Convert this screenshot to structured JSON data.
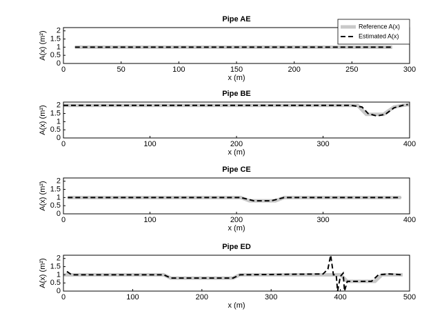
{
  "chart_data": [
    {
      "type": "line",
      "title": "Pipe AE",
      "xlabel": "x (m)",
      "ylabel": "A(x) (m²)",
      "xlim": [
        0,
        300
      ],
      "xticks": [
        0,
        50,
        100,
        150,
        200,
        250,
        300
      ],
      "ylim": [
        0,
        2.2
      ],
      "yticks": [
        0,
        0.5,
        1,
        1.5,
        2
      ],
      "legend": "upper right",
      "series": [
        {
          "name": "Reference A(x)",
          "color": "#c8c8c8",
          "style": "solid",
          "x": [
            10,
            285
          ],
          "values": [
            1,
            1
          ]
        },
        {
          "name": "Estimated A(x)",
          "color": "#000000",
          "style": "dashed",
          "x": [
            10,
            285
          ],
          "values": [
            1,
            1
          ]
        }
      ]
    },
    {
      "type": "line",
      "title": "Pipe BE",
      "xlabel": "x (m)",
      "ylabel": "A(x) (m²)",
      "xlim": [
        0,
        400
      ],
      "xticks": [
        0,
        100,
        200,
        300,
        400
      ],
      "ylim": [
        0,
        2.2
      ],
      "yticks": [
        0,
        0.5,
        1,
        1.5,
        2
      ],
      "series": [
        {
          "color": "#c8c8c8",
          "style": "solid",
          "x": [
            0,
            340,
            350,
            370,
            382,
            392,
            400
          ],
          "values": [
            2,
            2,
            1.45,
            1.45,
            1.9,
            2,
            2.05
          ]
        },
        {
          "color": "#000000",
          "style": "dashed",
          "x": [
            0,
            332,
            345,
            352,
            362,
            372,
            382,
            392,
            398
          ],
          "values": [
            2,
            2,
            1.9,
            1.5,
            1.35,
            1.45,
            1.85,
            2,
            2.05
          ]
        }
      ]
    },
    {
      "type": "line",
      "title": "Pipe CE",
      "xlabel": "x (m)",
      "ylabel": "A(x) (m²)",
      "xlim": [
        0,
        400
      ],
      "xticks": [
        0,
        100,
        200,
        300,
        400
      ],
      "ylim": [
        0,
        2.2
      ],
      "yticks": [
        0,
        0.5,
        1,
        1.5,
        2
      ],
      "series": [
        {
          "color": "#c8c8c8",
          "style": "solid",
          "x": [
            5,
            205,
            215,
            245,
            255,
            390
          ],
          "values": [
            1,
            1,
            0.8,
            0.8,
            1,
            1
          ]
        },
        {
          "color": "#000000",
          "style": "dashed",
          "x": [
            5,
            205,
            220,
            240,
            255,
            390
          ],
          "values": [
            1,
            1,
            0.8,
            0.8,
            1,
            1
          ]
        }
      ]
    },
    {
      "type": "line",
      "title": "Pipe ED",
      "xlabel": "x (m)",
      "ylabel": "A(x) (m²)",
      "xlim": [
        0,
        500
      ],
      "xticks": [
        0,
        100,
        200,
        300,
        400,
        500
      ],
      "ylim": [
        0,
        2.2
      ],
      "yticks": [
        0,
        0.5,
        1,
        1.5,
        2
      ],
      "series": [
        {
          "color": "#c8c8c8",
          "style": "solid",
          "x": [
            0,
            145,
            155,
            245,
            255,
            400,
            410,
            450,
            460,
            490
          ],
          "values": [
            1,
            1,
            0.8,
            0.8,
            1,
            1,
            0.6,
            0.6,
            1,
            1
          ]
        },
        {
          "color": "#000000",
          "style": "dashed",
          "x": [
            5,
            12,
            145,
            155,
            245,
            255,
            375,
            382,
            386,
            390,
            394,
            396,
            400,
            404,
            406,
            410,
            445,
            455,
            470,
            490
          ],
          "values": [
            1.2,
            1,
            1,
            0.8,
            0.8,
            1,
            1.05,
            1.35,
            2.2,
            1,
            1,
            0,
            0.9,
            1.1,
            0,
            0.6,
            0.6,
            1,
            1.05,
            1
          ]
        }
      ]
    }
  ]
}
